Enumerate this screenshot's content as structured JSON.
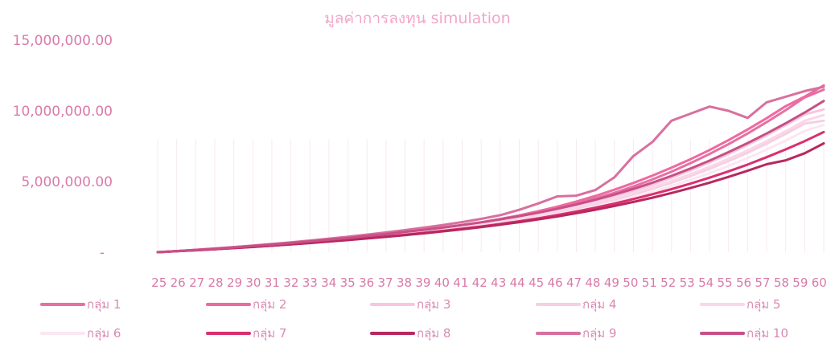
{
  "chart_data": {
    "type": "line",
    "title": "มูลค่าการลงทุน simulation",
    "xlabel": "",
    "ylabel": "",
    "ylim": [
      0,
      15000000
    ],
    "yticks": [
      {
        "value": 15000000,
        "label": "15,000,000.00"
      },
      {
        "value": 10000000,
        "label": "10,000,000.00"
      },
      {
        "value": 5000000,
        "label": "5,000,000.00"
      },
      {
        "value": 0,
        "label": "-"
      }
    ],
    "grid": "vertical",
    "legend_position": "bottom",
    "categories": [
      "25",
      "26",
      "27",
      "28",
      "29",
      "30",
      "31",
      "32",
      "33",
      "34",
      "35",
      "36",
      "37",
      "38",
      "39",
      "40",
      "41",
      "42",
      "43",
      "44",
      "45",
      "46",
      "47",
      "48",
      "49",
      "50",
      "51",
      "52",
      "53",
      "54",
      "55",
      "56",
      "57",
      "58",
      "59",
      "60"
    ],
    "series": [
      {
        "name": "กลุ่ม 1",
        "color": "#e86fa3",
        "values": [
          0,
          80000,
          160000,
          250000,
          340000,
          440000,
          540000,
          650000,
          760000,
          870000,
          990000,
          1110000,
          1240000,
          1380000,
          1520000,
          1680000,
          1850000,
          2050000,
          2270000,
          2520000,
          2800000,
          3100000,
          3430000,
          3800000,
          4200000,
          4650000,
          5150000,
          5700000,
          6300000,
          6950000,
          7650000,
          8400000,
          9200000,
          10050000,
          10950000,
          11500000
        ]
      },
      {
        "name": "กลุ่ม 2",
        "color": "#ee6aa1",
        "values": [
          0,
          80000,
          165000,
          255000,
          350000,
          450000,
          555000,
          665000,
          780000,
          900000,
          1020000,
          1150000,
          1290000,
          1430000,
          1580000,
          1740000,
          1920000,
          2120000,
          2350000,
          2610000,
          2900000,
          3220000,
          3580000,
          3980000,
          4420000,
          4900000,
          5420000,
          5980000,
          6580000,
          7230000,
          7930000,
          8680000,
          9480000,
          10330000,
          11000000,
          11800000
        ]
      },
      {
        "name": "กลุ่ม 3",
        "color": "#f8c6de",
        "values": [
          0,
          75000,
          150000,
          235000,
          325000,
          420000,
          520000,
          625000,
          735000,
          850000,
          970000,
          1095000,
          1225000,
          1365000,
          1510000,
          1665000,
          1830000,
          2010000,
          2210000,
          2430000,
          2680000,
          2950000,
          3250000,
          3580000,
          3950000,
          4350000,
          4790000,
          5270000,
          5790000,
          6350000,
          6950000,
          7590000,
          8270000,
          8990000,
          9750000,
          10100000
        ]
      },
      {
        "name": "กลุ่ม 4",
        "color": "#f6cfe3",
        "values": [
          0,
          70000,
          140000,
          220000,
          305000,
          395000,
          490000,
          590000,
          695000,
          805000,
          920000,
          1040000,
          1165000,
          1300000,
          1440000,
          1590000,
          1750000,
          1925000,
          2115000,
          2325000,
          2555000,
          2810000,
          3090000,
          3395000,
          3730000,
          4095000,
          4490000,
          4920000,
          5390000,
          5900000,
          6450000,
          7040000,
          7680000,
          8370000,
          9100000,
          9300000
        ]
      },
      {
        "name": "กลุ่ม 5",
        "color": "#f9d7e8",
        "values": [
          0,
          72000,
          145000,
          228000,
          315000,
          408000,
          505000,
          608000,
          716000,
          830000,
          948000,
          1072000,
          1200000,
          1338000,
          1482000,
          1636000,
          1800000,
          1980000,
          2176000,
          2390000,
          2626000,
          2886000,
          3170000,
          3482000,
          3822000,
          4196000,
          4600000,
          5040000,
          5520000,
          6040000,
          6600000,
          7200000,
          7850000,
          8550000,
          9300000,
          9700000
        ]
      },
      {
        "name": "กลุ่ม 6",
        "color": "#fbe7f1",
        "values": [
          0,
          65000,
          132000,
          205000,
          285000,
          370000,
          460000,
          555000,
          655000,
          760000,
          870000,
          985000,
          1105000,
          1235000,
          1370000,
          1515000,
          1670000,
          1840000,
          2025000,
          2225000,
          2445000,
          2685000,
          2950000,
          3240000,
          3555000,
          3900000,
          4275000,
          4680000,
          5120000,
          5595000,
          6110000,
          6665000,
          7260000,
          7900000,
          8580000,
          9000000
        ]
      },
      {
        "name": "กลุ่ม 7",
        "color": "#d9306f",
        "values": [
          0,
          70000,
          140000,
          215000,
          295000,
          380000,
          470000,
          565000,
          665000,
          770000,
          880000,
          995000,
          1115000,
          1240000,
          1370000,
          1510000,
          1660000,
          1820000,
          2000000,
          2190000,
          2400000,
          2630000,
          2880000,
          3150000,
          3440000,
          3760000,
          4100000,
          4460000,
          4850000,
          5270000,
          5720000,
          6200000,
          6720000,
          7270000,
          7860000,
          8500000
        ]
      },
      {
        "name": "กลุ่ม 8",
        "color": "#b8285f",
        "values": [
          0,
          68000,
          136000,
          210000,
          288000,
          370000,
          458000,
          550000,
          648000,
          750000,
          858000,
          970000,
          1088000,
          1210000,
          1338000,
          1475000,
          1620000,
          1775000,
          1945000,
          2125000,
          2320000,
          2530000,
          2760000,
          3005000,
          3270000,
          3555000,
          3860000,
          4190000,
          4540000,
          4920000,
          5330000,
          5760000,
          6220000,
          6500000,
          7000000,
          7700000
        ]
      },
      {
        "name": "กลุ่ม 9",
        "color": "#d8709e",
        "values": [
          0,
          82000,
          168000,
          262000,
          362000,
          468000,
          580000,
          700000,
          825000,
          958000,
          1098000,
          1245000,
          1400000,
          1565000,
          1740000,
          1925000,
          2130000,
          2360000,
          2620000,
          3000000,
          3450000,
          3950000,
          4000000,
          4400000,
          5300000,
          6800000,
          7800000,
          9300000,
          9800000,
          10300000,
          10000000,
          9500000,
          10600000,
          11000000,
          11400000,
          11700000
        ]
      },
      {
        "name": "กลุ่ม 10",
        "color": "#c75087",
        "values": [
          0,
          78000,
          158000,
          245000,
          338000,
          436000,
          540000,
          650000,
          765000,
          886000,
          1013000,
          1146000,
          1286000,
          1433000,
          1588000,
          1752000,
          1927000,
          2116000,
          2322000,
          2548000,
          2798000,
          3074000,
          3378000,
          3712000,
          4078000,
          4480000,
          4920000,
          5400000,
          5920000,
          6480000,
          7080000,
          7720000,
          8400000,
          9120000,
          9880000,
          10700000
        ]
      }
    ]
  }
}
